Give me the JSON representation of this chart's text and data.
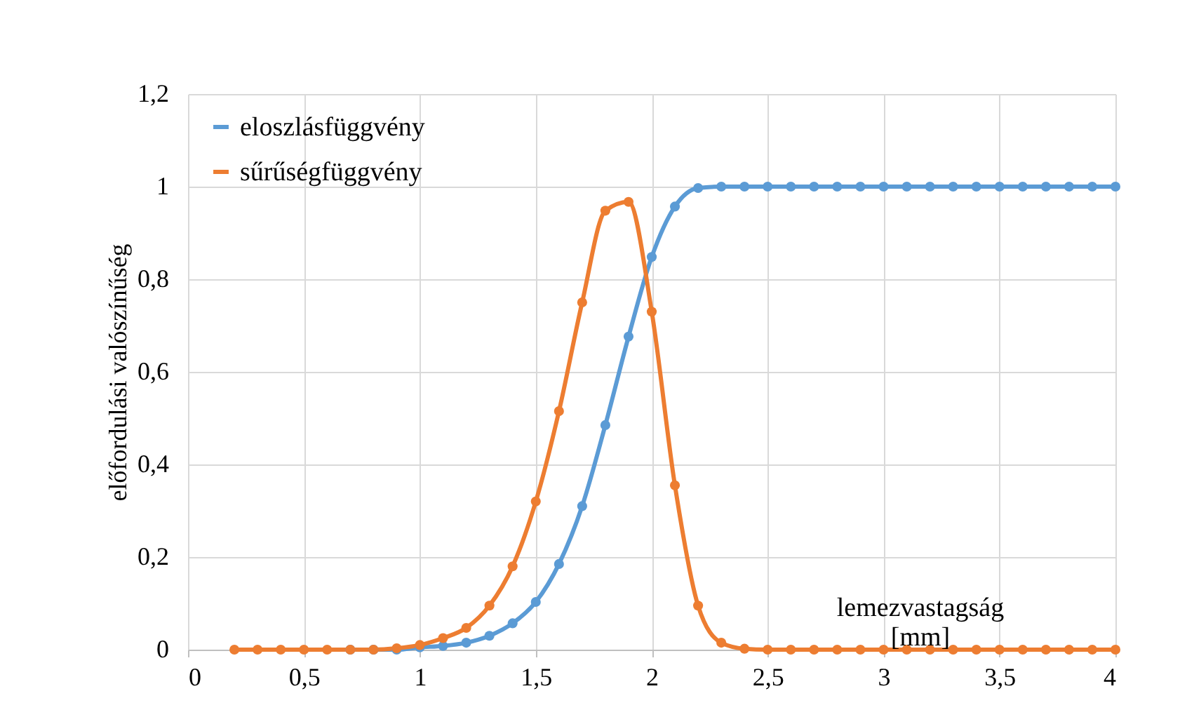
{
  "chart_data": {
    "type": "line",
    "ylabel": "előfordulási valószínűség",
    "xlabel": "lemezvastagság [mm]",
    "x": [
      0.2,
      0.3,
      0.4,
      0.5,
      0.6,
      0.7,
      0.8,
      0.9,
      1.0,
      1.1,
      1.2,
      1.3,
      1.4,
      1.5,
      1.6,
      1.7,
      1.8,
      1.9,
      2.0,
      2.1,
      2.2,
      2.3,
      2.4,
      2.5,
      2.6,
      2.7,
      2.8,
      2.9,
      3.0,
      3.1,
      3.2,
      3.3,
      3.4,
      3.5,
      3.6,
      3.7,
      3.8,
      3.9,
      4.0
    ],
    "series": [
      {
        "name": "eloszlásfüggvény",
        "color": "#5b9bd5",
        "values": [
          null,
          null,
          null,
          null,
          null,
          0,
          0,
          0,
          0.005,
          0.008,
          0.015,
          0.03,
          0.057,
          0.103,
          0.185,
          0.31,
          0.485,
          0.676,
          0.848,
          0.957,
          0.997,
          1,
          1,
          1,
          1,
          1,
          1,
          1,
          1,
          1,
          1,
          1,
          1,
          1,
          1,
          1,
          1,
          1,
          1
        ]
      },
      {
        "name": "sűrűségfüggvény",
        "color": "#ed7d31",
        "values": [
          0,
          0,
          0,
          0,
          0,
          0,
          0,
          0.003,
          0.01,
          0.025,
          0.047,
          0.095,
          0.18,
          0.32,
          0.515,
          0.75,
          0.948,
          0.967,
          0.73,
          0.355,
          0.095,
          0.015,
          0.002,
          0,
          0,
          0,
          0,
          0,
          0,
          0,
          0,
          0,
          0,
          0,
          0,
          0,
          0,
          0,
          0
        ]
      }
    ],
    "xlim": [
      0,
      4
    ],
    "xticks": [
      0,
      {
        "value": 0.5,
        "label": "0,5"
      },
      1,
      {
        "value": 1.5,
        "label": "1,5"
      },
      2,
      {
        "value": 2.5,
        "label": "2,5"
      },
      3,
      {
        "value": 3.5,
        "label": "3,5"
      },
      4
    ],
    "ylim": [
      0,
      1.2
    ],
    "yticks": [
      0,
      {
        "value": 0.2,
        "label": "0,2"
      },
      {
        "value": 0.4,
        "label": "0,4"
      },
      {
        "value": 0.6,
        "label": "0,6"
      },
      {
        "value": 0.8,
        "label": "0,8"
      },
      1,
      {
        "value": 1.2,
        "label": "1,2"
      }
    ],
    "grid": true,
    "legend": "top left",
    "marker": "circle",
    "line_style": "solid"
  }
}
